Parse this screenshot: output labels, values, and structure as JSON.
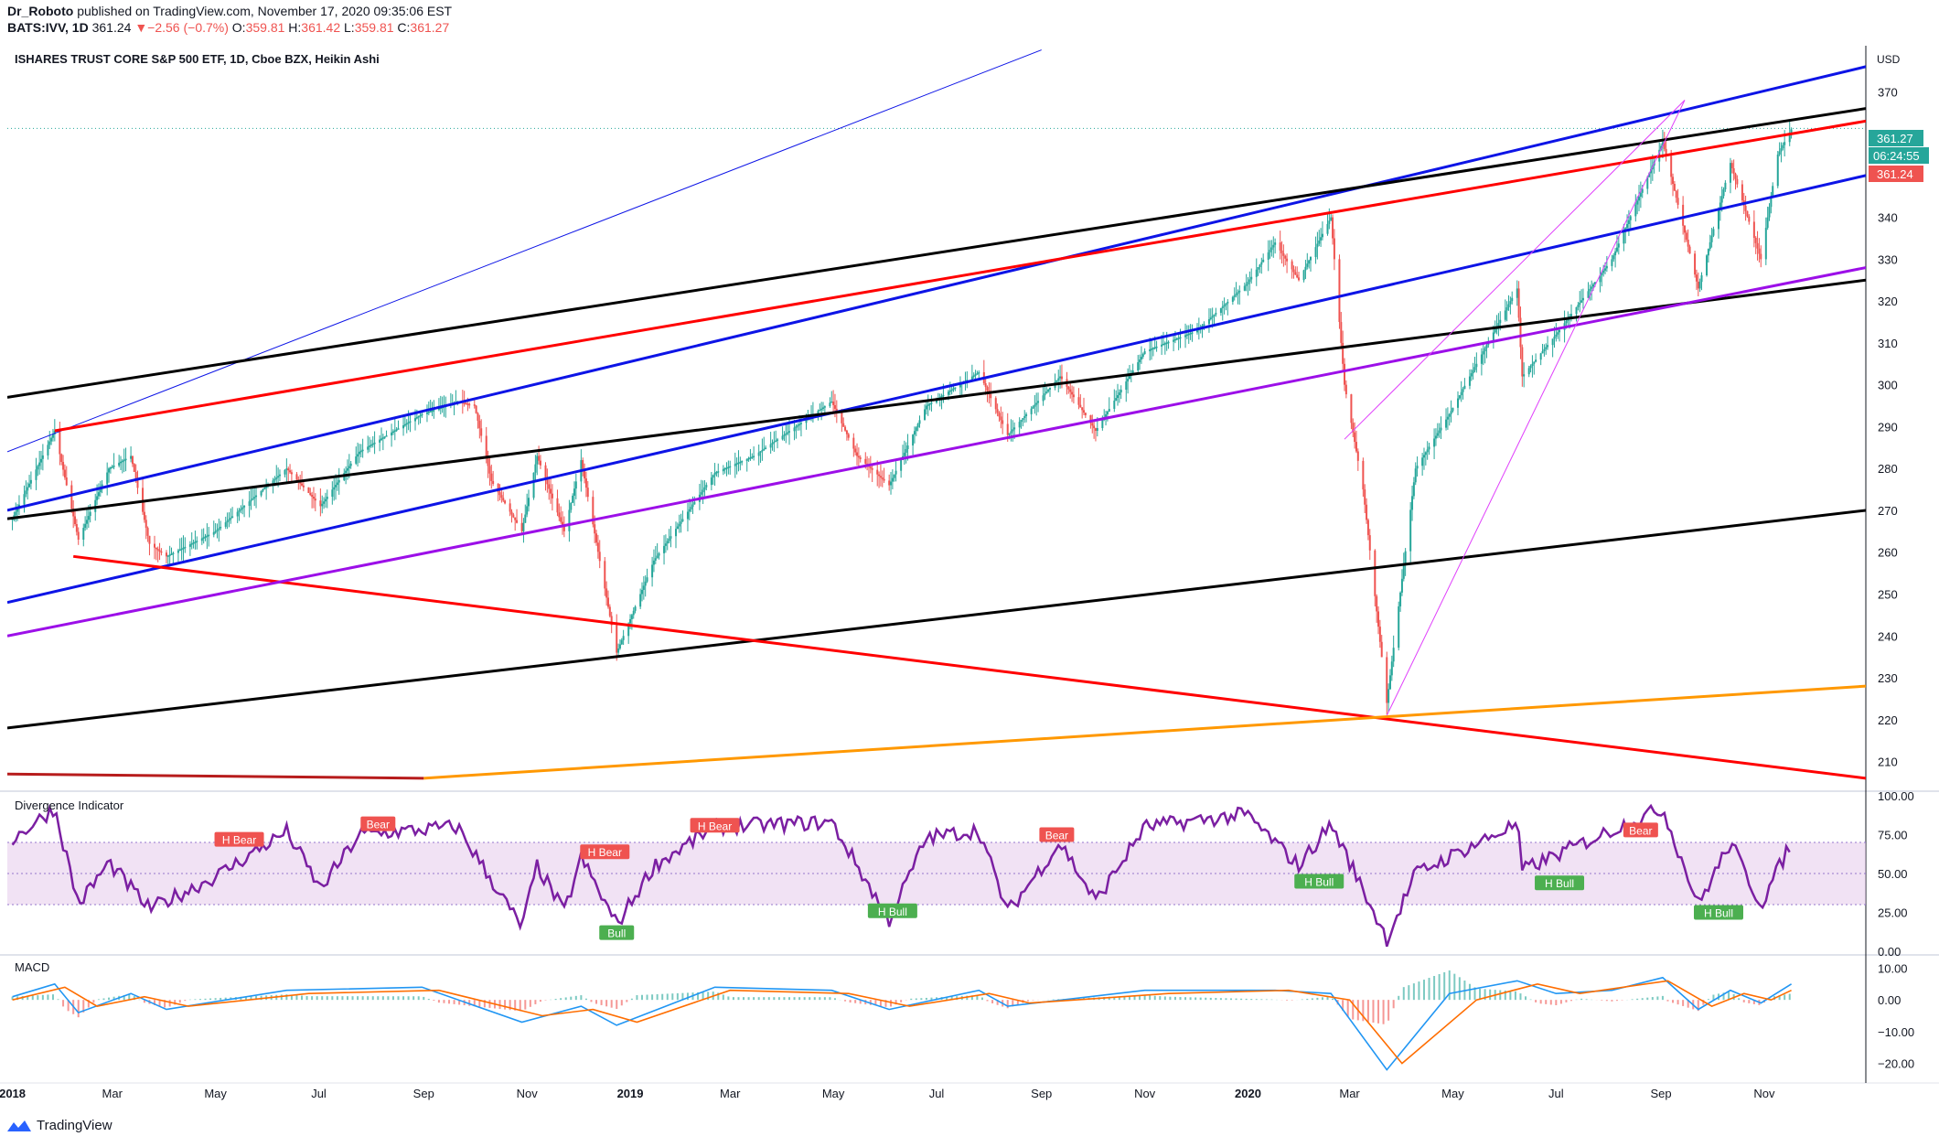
{
  "header": {
    "user": "Dr_Roboto",
    "published": " published on TradingView.com, November 17, 2020 09:35:06 EST",
    "symbol": "BATS:IVV, 1D",
    "last": "361.24",
    "change_arrow": "▼",
    "change": "−2.56 (−0.7%)",
    "o_label": "O:",
    "o": "359.81",
    "h_label": "H:",
    "h": "361.42",
    "l_label": "L:",
    "l": "359.81",
    "c_label": "C:",
    "c": "361.27"
  },
  "chart_title": "ISHARES TRUST CORE S&P 500 ETF, 1D, Cboe BZX, Heikin Ashi",
  "currency": "USD",
  "price_badges": {
    "upper": "361.27",
    "countdown": "06:24:55",
    "lower": "361.24"
  },
  "colors": {
    "up": "#26a69a",
    "down": "#ef5350",
    "blue": "#0d14e6",
    "red": "#ff0000",
    "black": "#000000",
    "purple": "#9c0fe8",
    "orange": "#ff9800",
    "magenta": "#e040fb",
    "osc": "#7b1fa2",
    "macd": "#2196f3",
    "signal": "#ff6d00"
  },
  "footer_logo": "TradingView",
  "chart_data": [
    {
      "type": "candlestick",
      "title": "ISHARES TRUST CORE S&P 500 ETF, 1D, Cboe BZX, Heikin Ashi",
      "ylim": [
        204,
        381
      ],
      "y_ticks": [
        210,
        220,
        230,
        240,
        250,
        260,
        270,
        280,
        290,
        300,
        310,
        320,
        330,
        340,
        350,
        360,
        370
      ],
      "x_ticks": [
        "2018",
        "Mar",
        "May",
        "Jul",
        "Sep",
        "Nov",
        "2019",
        "Mar",
        "May",
        "Jul",
        "Sep",
        "Nov",
        "2020",
        "Mar",
        "May",
        "Jul",
        "Sep",
        "Nov"
      ],
      "x_tick_dates": [
        "2018-01-01",
        "2018-03-01",
        "2018-05-01",
        "2018-07-01",
        "2018-09-01",
        "2018-11-01",
        "2019-01-01",
        "2019-03-01",
        "2019-05-01",
        "2019-07-01",
        "2019-09-01",
        "2019-11-01",
        "2020-01-01",
        "2020-03-01",
        "2020-05-01",
        "2020-07-01",
        "2020-09-01",
        "2020-11-01"
      ],
      "x_range": [
        "2017-12-29",
        "2020-12-31"
      ],
      "price_path": [
        [
          "2018-01-01",
          268
        ],
        [
          "2018-01-26",
          289
        ],
        [
          "2018-02-09",
          263
        ],
        [
          "2018-02-27",
          280
        ],
        [
          "2018-03-12",
          283
        ],
        [
          "2018-03-23",
          262
        ],
        [
          "2018-04-02",
          259
        ],
        [
          "2018-05-01",
          265
        ],
        [
          "2018-06-12",
          280
        ],
        [
          "2018-07-02",
          271
        ],
        [
          "2018-07-25",
          284
        ],
        [
          "2018-08-31",
          293
        ],
        [
          "2018-09-21",
          296
        ],
        [
          "2018-10-01",
          295
        ],
        [
          "2018-10-11",
          277
        ],
        [
          "2018-10-29",
          265
        ],
        [
          "2018-11-07",
          283
        ],
        [
          "2018-11-23",
          265
        ],
        [
          "2018-12-03",
          282
        ],
        [
          "2018-12-24",
          236
        ],
        [
          "2019-01-15",
          258
        ],
        [
          "2019-02-20",
          279
        ],
        [
          "2019-03-15",
          283
        ],
        [
          "2019-04-30",
          296
        ],
        [
          "2019-05-15",
          283
        ],
        [
          "2019-06-03",
          276
        ],
        [
          "2019-06-25",
          295
        ],
        [
          "2019-07-26",
          303
        ],
        [
          "2019-08-12",
          288
        ],
        [
          "2019-09-12",
          302
        ],
        [
          "2019-10-03",
          289
        ],
        [
          "2019-11-01",
          308
        ],
        [
          "2019-12-02",
          313
        ],
        [
          "2019-12-31",
          324
        ],
        [
          "2020-01-17",
          334
        ],
        [
          "2020-01-31",
          325
        ],
        [
          "2020-02-19",
          340
        ],
        [
          "2020-02-27",
          300
        ],
        [
          "2020-03-09",
          275
        ],
        [
          "2020-03-23",
          224
        ],
        [
          "2020-04-09",
          280
        ],
        [
          "2020-04-29",
          293
        ],
        [
          "2020-06-08",
          323
        ],
        [
          "2020-06-11",
          302
        ],
        [
          "2020-07-01",
          312
        ],
        [
          "2020-08-03",
          330
        ],
        [
          "2020-09-02",
          358
        ],
        [
          "2020-09-23",
          323
        ],
        [
          "2020-10-12",
          353
        ],
        [
          "2020-10-30",
          330
        ],
        [
          "2020-11-09",
          355
        ],
        [
          "2020-11-17",
          361
        ]
      ],
      "last_price": 361.24,
      "trendlines": [
        {
          "color": "blue",
          "width": 3,
          "from": [
            "2017-12-29",
            270
          ],
          "to": [
            "2020-12-31",
            376
          ]
        },
        {
          "color": "blue",
          "width": 3,
          "from": [
            "2017-12-29",
            248
          ],
          "to": [
            "2020-12-31",
            350
          ]
        },
        {
          "color": "blue",
          "width": 1,
          "from": [
            "2017-12-29",
            284
          ],
          "to": [
            "2019-09-01",
            380
          ]
        },
        {
          "color": "black",
          "width": 3,
          "from": [
            "2017-12-29",
            297
          ],
          "to": [
            "2020-12-31",
            366
          ]
        },
        {
          "color": "black",
          "width": 3,
          "from": [
            "2017-12-29",
            268
          ],
          "to": [
            "2020-12-31",
            325
          ]
        },
        {
          "color": "black",
          "width": 3,
          "from": [
            "2017-12-29",
            218
          ],
          "to": [
            "2020-12-31",
            270
          ]
        },
        {
          "color": "red",
          "width": 3,
          "from": [
            "2018-01-26",
            289
          ],
          "to": [
            "2020-12-31",
            363
          ]
        },
        {
          "color": "red",
          "width": 3,
          "from": [
            "2018-02-06",
            259
          ],
          "to": [
            "2020-12-31",
            206
          ]
        },
        {
          "color": "purple",
          "width": 3,
          "from": [
            "2017-12-29",
            240
          ],
          "to": [
            "2020-12-31",
            328
          ]
        },
        {
          "color": "orange",
          "width": 3,
          "from": [
            "2018-09-01",
            206
          ],
          "to": [
            "2020-12-31",
            228
          ]
        },
        {
          "color": "magenta",
          "width": 1,
          "from": [
            "2020-03-23",
            221
          ],
          "to": [
            "2020-09-15",
            368
          ]
        },
        {
          "color": "magenta",
          "width": 1,
          "from": [
            "2020-02-27",
            287
          ],
          "to": [
            "2020-09-15",
            368
          ]
        }
      ]
    },
    {
      "type": "line",
      "title": "Divergence Indicator",
      "ylim": [
        0,
        100
      ],
      "y_ticks": [
        "100.00",
        "75.00",
        "50.00",
        "25.00",
        "0.00"
      ],
      "band": [
        30,
        70
      ],
      "series_path": [
        [
          "2018-01-01",
          72
        ],
        [
          "2018-01-26",
          92
        ],
        [
          "2018-02-09",
          30
        ],
        [
          "2018-02-27",
          57
        ],
        [
          "2018-03-23",
          27
        ],
        [
          "2018-05-01",
          48
        ],
        [
          "2018-06-12",
          77
        ],
        [
          "2018-07-02",
          40
        ],
        [
          "2018-07-25",
          75
        ],
        [
          "2018-09-21",
          80
        ],
        [
          "2018-10-29",
          15
        ],
        [
          "2018-11-07",
          55
        ],
        [
          "2018-11-23",
          25
        ],
        [
          "2018-12-03",
          60
        ],
        [
          "2018-12-24",
          17
        ],
        [
          "2019-01-15",
          55
        ],
        [
          "2019-02-20",
          80
        ],
        [
          "2019-04-30",
          83
        ],
        [
          "2019-06-03",
          20
        ],
        [
          "2019-06-25",
          73
        ],
        [
          "2019-07-26",
          78
        ],
        [
          "2019-08-12",
          25
        ],
        [
          "2019-09-12",
          70
        ],
        [
          "2019-10-03",
          32
        ],
        [
          "2019-11-01",
          80
        ],
        [
          "2019-12-31",
          88
        ],
        [
          "2020-01-31",
          55
        ],
        [
          "2020-02-19",
          82
        ],
        [
          "2020-03-23",
          8
        ],
        [
          "2020-04-09",
          50
        ],
        [
          "2020-06-08",
          82
        ],
        [
          "2020-06-11",
          52
        ],
        [
          "2020-08-03",
          78
        ],
        [
          "2020-09-02",
          92
        ],
        [
          "2020-09-23",
          30
        ],
        [
          "2020-10-12",
          70
        ],
        [
          "2020-10-30",
          30
        ],
        [
          "2020-11-17",
          70
        ]
      ],
      "labels": [
        {
          "text": "H Bear",
          "kind": "bear",
          "at": [
            "2018-05-15",
            72
          ]
        },
        {
          "text": "Bear",
          "kind": "bear",
          "at": [
            "2018-08-05",
            82
          ]
        },
        {
          "text": "H Bear",
          "kind": "bear",
          "at": [
            "2018-12-17",
            64
          ]
        },
        {
          "text": "H Bear",
          "kind": "bear",
          "at": [
            "2019-02-20",
            81
          ]
        },
        {
          "text": "Bull",
          "kind": "bull",
          "at": [
            "2018-12-24",
            12
          ]
        },
        {
          "text": "H Bull",
          "kind": "bull",
          "at": [
            "2019-06-05",
            26
          ]
        },
        {
          "text": "Bear",
          "kind": "bear",
          "at": [
            "2019-09-10",
            75
          ]
        },
        {
          "text": "H Bull",
          "kind": "bull",
          "at": [
            "2020-02-12",
            45
          ]
        },
        {
          "text": "H Bull",
          "kind": "bull",
          "at": [
            "2020-07-03",
            44
          ]
        },
        {
          "text": "Bear",
          "kind": "bear",
          "at": [
            "2020-08-20",
            78
          ]
        },
        {
          "text": "H Bull",
          "kind": "bull",
          "at": [
            "2020-10-05",
            25
          ]
        }
      ]
    },
    {
      "type": "line",
      "title": "MACD",
      "ylim": [
        -25,
        13
      ],
      "y_ticks": [
        "10.00",
        "0.00",
        "−10.00",
        "−20.00"
      ],
      "series": [
        {
          "color": "#2196f3",
          "values_path": [
            [
              "2018-01-01",
              1
            ],
            [
              "2018-01-26",
              5
            ],
            [
              "2018-02-09",
              -4
            ],
            [
              "2018-03-12",
              2
            ],
            [
              "2018-04-02",
              -3
            ],
            [
              "2018-06-12",
              3
            ],
            [
              "2018-08-31",
              4
            ],
            [
              "2018-10-29",
              -7
            ],
            [
              "2018-12-03",
              -2
            ],
            [
              "2018-12-24",
              -8
            ],
            [
              "2019-02-20",
              4
            ],
            [
              "2019-04-30",
              3
            ],
            [
              "2019-06-03",
              -3
            ],
            [
              "2019-07-26",
              3
            ],
            [
              "2019-08-12",
              -2
            ],
            [
              "2019-11-01",
              3
            ],
            [
              "2020-01-17",
              3
            ],
            [
              "2020-02-19",
              2
            ],
            [
              "2020-03-23",
              -22
            ],
            [
              "2020-04-29",
              2
            ],
            [
              "2020-06-08",
              6
            ],
            [
              "2020-07-01",
              2
            ],
            [
              "2020-08-03",
              3
            ],
            [
              "2020-09-02",
              7
            ],
            [
              "2020-09-23",
              -3
            ],
            [
              "2020-10-12",
              3
            ],
            [
              "2020-10-30",
              -1
            ],
            [
              "2020-11-17",
              5
            ]
          ]
        },
        {
          "color": "#ff6d00",
          "values_path": [
            [
              "2018-01-01",
              0
            ],
            [
              "2018-02-01",
              4
            ],
            [
              "2018-02-20",
              -2
            ],
            [
              "2018-03-20",
              1
            ],
            [
              "2018-04-15",
              -2
            ],
            [
              "2018-06-25",
              2
            ],
            [
              "2018-09-10",
              3
            ],
            [
              "2018-11-10",
              -5
            ],
            [
              "2018-12-10",
              -3
            ],
            [
              "2019-01-05",
              -7
            ],
            [
              "2019-03-01",
              3
            ],
            [
              "2019-05-10",
              2
            ],
            [
              "2019-06-15",
              -2
            ],
            [
              "2019-08-01",
              2
            ],
            [
              "2019-08-25",
              -1
            ],
            [
              "2019-11-15",
              2
            ],
            [
              "2020-01-25",
              3
            ],
            [
              "2020-03-01",
              0
            ],
            [
              "2020-04-01",
              -20
            ],
            [
              "2020-05-15",
              0
            ],
            [
              "2020-06-20",
              5
            ],
            [
              "2020-07-15",
              2
            ],
            [
              "2020-09-05",
              6
            ],
            [
              "2020-10-01",
              -2
            ],
            [
              "2020-10-20",
              2
            ],
            [
              "2020-11-05",
              0
            ],
            [
              "2020-11-17",
              3
            ]
          ]
        }
      ]
    }
  ]
}
